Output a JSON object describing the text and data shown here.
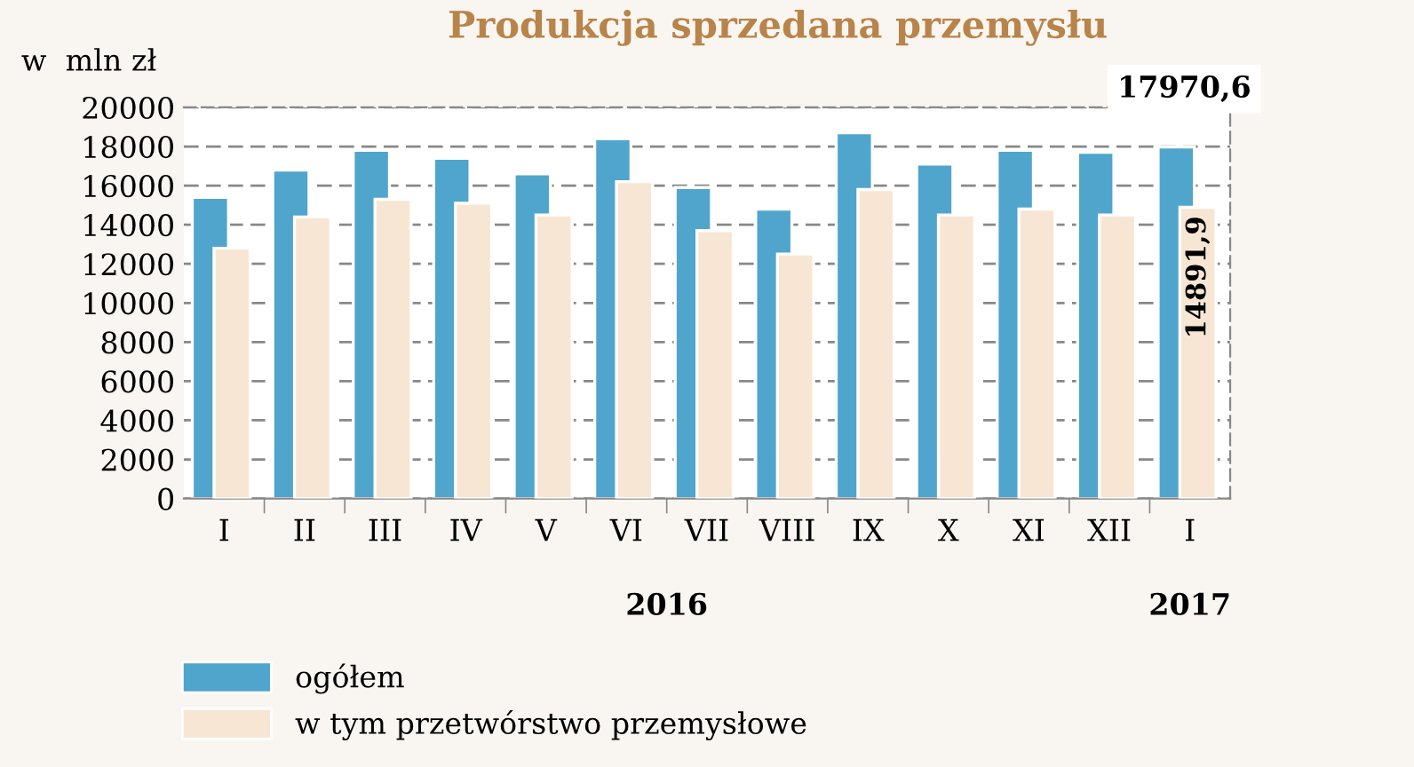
{
  "chart_data": {
    "type": "bar",
    "title": "Produkcja sprzedana przemysłu",
    "ylabel": "w  mln zł",
    "categories": [
      "I",
      "II",
      "III",
      "IV",
      "V",
      "VI",
      "VII",
      "VIII",
      "IX",
      "X",
      "XI",
      "XII",
      "I"
    ],
    "series": [
      {
        "name": "ogółem",
        "color": "#50a5cd",
        "values": [
          15400,
          16800,
          17800,
          17400,
          16600,
          18400,
          15900,
          14800,
          18700,
          17100,
          17800,
          17700,
          17970.6
        ],
        "value_labels": [
          null,
          null,
          null,
          null,
          null,
          null,
          null,
          null,
          null,
          null,
          null,
          null,
          "17970,6"
        ]
      },
      {
        "name": "w tym przetwórstwo przemysłowe",
        "color": "#f8e6d4",
        "values": [
          12800,
          14400,
          15300,
          15100,
          14500,
          16200,
          13700,
          12500,
          15800,
          14500,
          14800,
          14500,
          14891.9
        ],
        "value_labels": [
          null,
          null,
          null,
          null,
          null,
          null,
          null,
          null,
          null,
          null,
          null,
          null,
          "14891,9"
        ]
      }
    ],
    "annotations": [
      "2016",
      "2017"
    ],
    "ylim": [
      0,
      20000
    ],
    "yticks": [
      0,
      2000,
      4000,
      6000,
      8000,
      10000,
      12000,
      14000,
      16000,
      18000,
      20000
    ],
    "grid": "y",
    "legend": "bottom"
  }
}
